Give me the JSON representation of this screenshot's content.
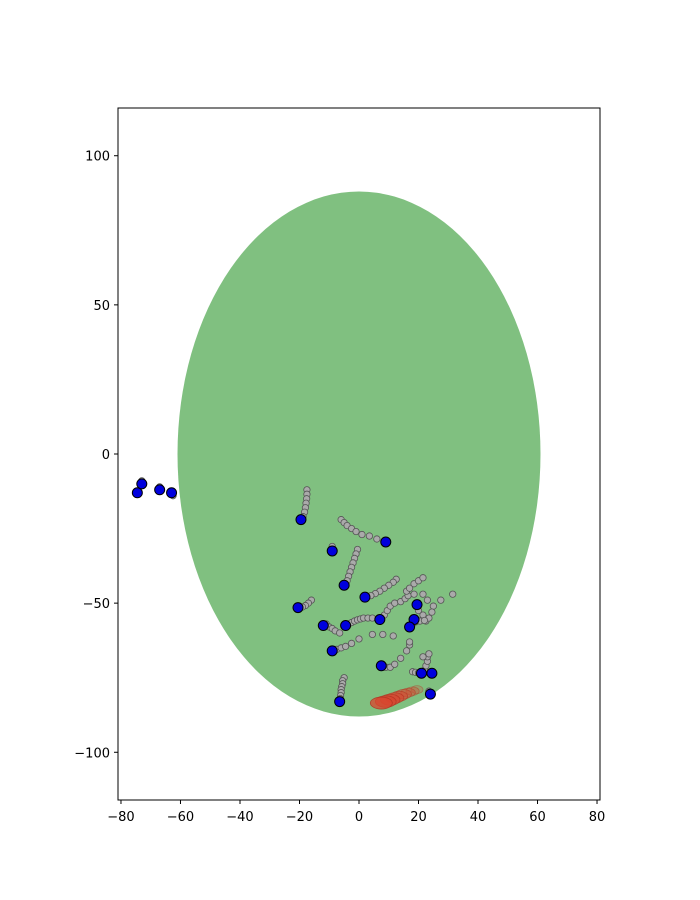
{
  "chart_data": {
    "type": "scatter",
    "title": "",
    "xlabel": "",
    "ylabel": "",
    "xlim": [
      -81,
      81
    ],
    "ylim": [
      -116,
      116
    ],
    "x_ticks": [
      -80,
      -60,
      -40,
      -20,
      0,
      20,
      40,
      60,
      80
    ],
    "y_ticks": [
      -100,
      -50,
      0,
      50,
      100
    ],
    "grid": false,
    "legend": "none",
    "colors": {
      "region": "#80c080",
      "trail": "#aaaaaa",
      "trail_edge": "#555555",
      "agent": "#0000dd",
      "agent_edge": "#000000",
      "target": "#d9442e"
    },
    "region_ellipse": {
      "center": [
        0,
        0
      ],
      "rx": 61,
      "ry": 88
    },
    "agents": [
      {
        "x": -74.5,
        "y": -13
      },
      {
        "x": -73,
        "y": -10
      },
      {
        "x": -67,
        "y": -12
      },
      {
        "x": -63,
        "y": -13
      },
      {
        "x": -19.5,
        "y": -22
      },
      {
        "x": -9,
        "y": -32.5
      },
      {
        "x": 9,
        "y": -29.5
      },
      {
        "x": -5,
        "y": -44
      },
      {
        "x": 2,
        "y": -48
      },
      {
        "x": -20.5,
        "y": -51.5
      },
      {
        "x": 19.5,
        "y": -50.5
      },
      {
        "x": -12,
        "y": -57.5
      },
      {
        "x": -4.5,
        "y": -57.5
      },
      {
        "x": 7,
        "y": -55.5
      },
      {
        "x": 18.5,
        "y": -55.5
      },
      {
        "x": 17,
        "y": -58
      },
      {
        "x": -9,
        "y": -66
      },
      {
        "x": 7.5,
        "y": -71
      },
      {
        "x": 21,
        "y": -73.5
      },
      {
        "x": 24.5,
        "y": -73.5
      },
      {
        "x": -6.5,
        "y": -83
      },
      {
        "x": 24,
        "y": -80.5
      }
    ],
    "trails": [
      {
        "x": -73,
        "y": -9
      },
      {
        "x": -67,
        "y": -11
      },
      {
        "x": -62.5,
        "y": -14
      },
      {
        "x": -17.5,
        "y": -12
      },
      {
        "x": -17.5,
        "y": -13.5
      },
      {
        "x": -17.6,
        "y": -15
      },
      {
        "x": -17.8,
        "y": -16.5
      },
      {
        "x": -18,
        "y": -18
      },
      {
        "x": -18.3,
        "y": -19.5
      },
      {
        "x": -18.8,
        "y": -21
      },
      {
        "x": -9,
        "y": -31
      },
      {
        "x": -6,
        "y": -22
      },
      {
        "x": -5,
        "y": -23
      },
      {
        "x": -4,
        "y": -24
      },
      {
        "x": -2.5,
        "y": -25
      },
      {
        "x": -1,
        "y": -26
      },
      {
        "x": 1,
        "y": -27
      },
      {
        "x": 3.5,
        "y": -27.5
      },
      {
        "x": 6,
        "y": -28.5
      },
      {
        "x": -0.5,
        "y": -32
      },
      {
        "x": -1,
        "y": -33.5
      },
      {
        "x": -1.5,
        "y": -35
      },
      {
        "x": -2,
        "y": -36.5
      },
      {
        "x": -2.5,
        "y": -38
      },
      {
        "x": -3,
        "y": -39.5
      },
      {
        "x": -3.5,
        "y": -41
      },
      {
        "x": -4,
        "y": -42.5
      },
      {
        "x": 12.5,
        "y": -42
      },
      {
        "x": 11.5,
        "y": -43
      },
      {
        "x": 10,
        "y": -44
      },
      {
        "x": 8.5,
        "y": -45
      },
      {
        "x": 7,
        "y": -46
      },
      {
        "x": 5.5,
        "y": -46.8
      },
      {
        "x": 4,
        "y": -47.5
      },
      {
        "x": -16,
        "y": -49
      },
      {
        "x": -17,
        "y": -50
      },
      {
        "x": -18,
        "y": -50.8
      },
      {
        "x": -19,
        "y": -51.3
      },
      {
        "x": -11,
        "y": -57
      },
      {
        "x": -10,
        "y": -58
      },
      {
        "x": -9,
        "y": -58.5
      },
      {
        "x": -8,
        "y": -59.3
      },
      {
        "x": -6.5,
        "y": -60
      },
      {
        "x": -3.5,
        "y": -57
      },
      {
        "x": -2.5,
        "y": -56.5
      },
      {
        "x": -1.5,
        "y": -56
      },
      {
        "x": -0.5,
        "y": -55.6
      },
      {
        "x": 0.5,
        "y": -55.3
      },
      {
        "x": 1.5,
        "y": -55
      },
      {
        "x": 3,
        "y": -55
      },
      {
        "x": 4.5,
        "y": -55
      },
      {
        "x": 8.5,
        "y": -54
      },
      {
        "x": 9.5,
        "y": -52.5
      },
      {
        "x": 10.5,
        "y": -51
      },
      {
        "x": 12,
        "y": -50
      },
      {
        "x": 14,
        "y": -49.5
      },
      {
        "x": 15.5,
        "y": -48.5
      },
      {
        "x": 16.5,
        "y": -47.5
      },
      {
        "x": 16,
        "y": -46
      },
      {
        "x": 17,
        "y": -45
      },
      {
        "x": 18.5,
        "y": -43.5
      },
      {
        "x": 20,
        "y": -42.5
      },
      {
        "x": 21.5,
        "y": -41.5
      },
      {
        "x": 18.5,
        "y": -47
      },
      {
        "x": 21.5,
        "y": -47
      },
      {
        "x": 23,
        "y": -49
      },
      {
        "x": 25,
        "y": -51
      },
      {
        "x": 27.5,
        "y": -49
      },
      {
        "x": 31.5,
        "y": -47
      },
      {
        "x": 20,
        "y": -52.5
      },
      {
        "x": 21.5,
        "y": -54
      },
      {
        "x": 22.5,
        "y": -56
      },
      {
        "x": 23.5,
        "y": -55
      },
      {
        "x": 24.5,
        "y": -53
      },
      {
        "x": 18,
        "y": -57
      },
      {
        "x": 19,
        "y": -56.3
      },
      {
        "x": 20.5,
        "y": -56
      },
      {
        "x": 22,
        "y": -55.8
      },
      {
        "x": -7.5,
        "y": -65.5
      },
      {
        "x": -6,
        "y": -65
      },
      {
        "x": -4.5,
        "y": -64.5
      },
      {
        "x": -2.5,
        "y": -63.5
      },
      {
        "x": 0,
        "y": -62
      },
      {
        "x": 4.5,
        "y": -60.5
      },
      {
        "x": 8,
        "y": -60.5
      },
      {
        "x": 11.5,
        "y": -61
      },
      {
        "x": 9,
        "y": -71.5
      },
      {
        "x": 10.5,
        "y": -71.5
      },
      {
        "x": 12,
        "y": -70.5
      },
      {
        "x": 14,
        "y": -68.5
      },
      {
        "x": 16,
        "y": -66
      },
      {
        "x": 17,
        "y": -64
      },
      {
        "x": 17,
        "y": -63
      },
      {
        "x": 18,
        "y": -73
      },
      {
        "x": 19,
        "y": -73.2
      },
      {
        "x": 20,
        "y": -73.4
      },
      {
        "x": 22,
        "y": -72.5
      },
      {
        "x": 22.5,
        "y": -71
      },
      {
        "x": 23,
        "y": -69.5
      },
      {
        "x": 23,
        "y": -68
      },
      {
        "x": 23.5,
        "y": -67
      },
      {
        "x": 21.5,
        "y": -68
      },
      {
        "x": -5,
        "y": -75
      },
      {
        "x": -5.5,
        "y": -76
      },
      {
        "x": -5.5,
        "y": -77
      },
      {
        "x": -5.8,
        "y": -78
      },
      {
        "x": -6,
        "y": -79
      },
      {
        "x": -6,
        "y": -80
      },
      {
        "x": -6.2,
        "y": -81
      },
      {
        "x": -6.3,
        "y": -82
      },
      {
        "x": 23.5,
        "y": -79.5
      }
    ],
    "target_path": [
      {
        "x": 19.5,
        "y": -79
      },
      {
        "x": 18,
        "y": -79.5
      },
      {
        "x": 16.5,
        "y": -80
      },
      {
        "x": 15,
        "y": -80.5
      },
      {
        "x": 13.5,
        "y": -81.2
      },
      {
        "x": 12,
        "y": -81.8
      },
      {
        "x": 10.5,
        "y": -82.4
      },
      {
        "x": 9,
        "y": -83
      },
      {
        "x": 7.5,
        "y": -83.5
      }
    ]
  }
}
